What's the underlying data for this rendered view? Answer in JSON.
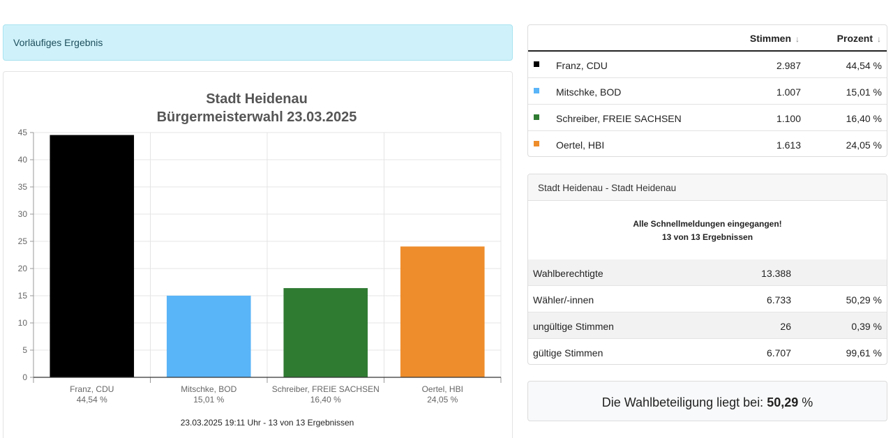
{
  "status_banner": "Vorläufiges Ergebnis",
  "chart_data": {
    "type": "bar",
    "title": [
      "Stadt Heidenau",
      "Bürgermeisterwahl 23.03.2025"
    ],
    "categories": [
      "Franz, CDU",
      "Mitschke, BOD",
      "Schreiber, FREIE SACHSEN",
      "Oertel, HBI"
    ],
    "category_sublabels": [
      "44,54 %",
      "15,01 %",
      "16,40 %",
      "24,05 %"
    ],
    "values": [
      44.54,
      15.01,
      16.4,
      24.05
    ],
    "colors": [
      "#000000",
      "#5ab4f8",
      "#2f7b32",
      "#ee8d2c"
    ],
    "ylim": [
      0,
      45
    ],
    "yticks": [
      0,
      5,
      10,
      15,
      20,
      25,
      30,
      35,
      40,
      45
    ],
    "grid": true,
    "footer": "23.03.2025 19:11 Uhr - 13 von 13 Ergebnissen"
  },
  "results_table": {
    "headers": {
      "votes": "Stimmen",
      "percent": "Prozent",
      "sort_glyph": "↓"
    },
    "rows": [
      {
        "name": "Franz, CDU",
        "votes": "2.987",
        "percent": "44,54 %",
        "color": "#000000"
      },
      {
        "name": "Mitschke, BOD",
        "votes": "1.007",
        "percent": "15,01 %",
        "color": "#5ab4f8"
      },
      {
        "name": "Schreiber, FREIE SACHSEN",
        "votes": "1.100",
        "percent": "16,40 %",
        "color": "#2f7b32"
      },
      {
        "name": "Oertel, HBI",
        "votes": "1.613",
        "percent": "24,05 %",
        "color": "#ee8d2c"
      }
    ]
  },
  "summary": {
    "header": "Stadt Heidenau - Stadt Heidenau",
    "notice_line1": "Alle Schnellmeldungen eingegangen!",
    "notice_line2": "13 von 13 Ergebnissen",
    "rows": [
      {
        "label": "Wahlberechtigte",
        "value": "13.388",
        "percent": ""
      },
      {
        "label": "Wähler/-innen",
        "value": "6.733",
        "percent": "50,29 %"
      },
      {
        "label": "ungültige Stimmen",
        "value": "26",
        "percent": "0,39 %"
      },
      {
        "label": "gültige Stimmen",
        "value": "6.707",
        "percent": "99,61 %"
      }
    ]
  },
  "turnout": {
    "prefix": "Die Wahlbeteiligung liegt bei:",
    "value": "50,29",
    "suffix": "%"
  }
}
